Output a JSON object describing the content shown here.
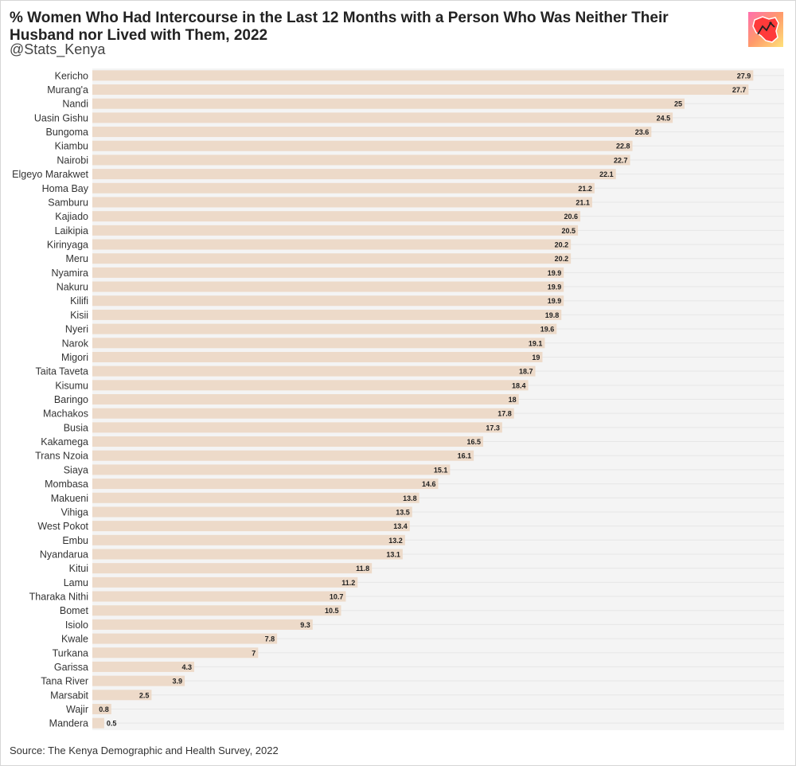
{
  "header": {
    "title": "% Women Who Had Intercourse in the Last 12 Months with a Person Who Was Neither Their Husband nor Lived with Them, 2022",
    "subtitle": "@Stats_Kenya"
  },
  "footer": {
    "source": "Source: The Kenya Demographic and Health Survey, 2022"
  },
  "logo": {
    "icon": "kenya-map-logo-icon"
  },
  "colors": {
    "bar": "#eddac9",
    "panel": "#f4f4f4",
    "grid": "#e6e6e6",
    "label": "#222222"
  },
  "chart_data": {
    "type": "bar",
    "orientation": "horizontal",
    "categories": [
      "Kericho",
      "Murang'a",
      "Nandi",
      "Uasin Gishu",
      "Bungoma",
      "Kiambu",
      "Nairobi",
      "Elgeyo Marakwet",
      "Homa Bay",
      "Samburu",
      "Kajiado",
      "Laikipia",
      "Kirinyaga",
      "Meru",
      "Nyamira",
      "Nakuru",
      "Kilifi",
      "Kisii",
      "Nyeri",
      "Narok",
      "Migori",
      "Taita Taveta",
      "Kisumu",
      "Baringo",
      "Machakos",
      "Busia",
      "Kakamega",
      "Trans Nzoia",
      "Siaya",
      "Mombasa",
      "Makueni",
      "Vihiga",
      "West Pokot",
      "Embu",
      "Nyandarua",
      "Kitui",
      "Lamu",
      "Tharaka Nithi",
      "Bomet",
      "Isiolo",
      "Kwale",
      "Turkana",
      "Garissa",
      "Tana River",
      "Marsabit",
      "Wajir",
      "Mandera"
    ],
    "values": [
      27.9,
      27.7,
      25,
      24.5,
      23.6,
      22.8,
      22.7,
      22.1,
      21.2,
      21.1,
      20.6,
      20.5,
      20.2,
      20.2,
      19.9,
      19.9,
      19.9,
      19.8,
      19.6,
      19.1,
      19,
      18.7,
      18.4,
      18,
      17.8,
      17.3,
      16.5,
      16.1,
      15.1,
      14.6,
      13.8,
      13.5,
      13.4,
      13.2,
      13.1,
      11.8,
      11.2,
      10.7,
      10.5,
      9.3,
      7.8,
      7,
      4.3,
      3.9,
      2.5,
      0.8,
      0.5
    ],
    "value_labels": [
      "27.9",
      "27.7",
      "25",
      "24.5",
      "23.6",
      "22.8",
      "22.7",
      "22.1",
      "21.2",
      "21.1",
      "20.6",
      "20.5",
      "20.2",
      "20.2",
      "19.9",
      "19.9",
      "19.9",
      "19.8",
      "19.6",
      "19.1",
      "19",
      "18.7",
      "18.4",
      "18",
      "17.8",
      "17.3",
      "16.5",
      "16.1",
      "15.1",
      "14.6",
      "13.8",
      "13.5",
      "13.4",
      "13.2",
      "13.1",
      "11.8",
      "11.2",
      "10.7",
      "10.5",
      "9.3",
      "7.8",
      "7",
      "4.3",
      "3.9",
      "2.5",
      "0.8",
      "0.5"
    ],
    "xlim": [
      0,
      29.2
    ],
    "grid": true,
    "legend": "none"
  }
}
